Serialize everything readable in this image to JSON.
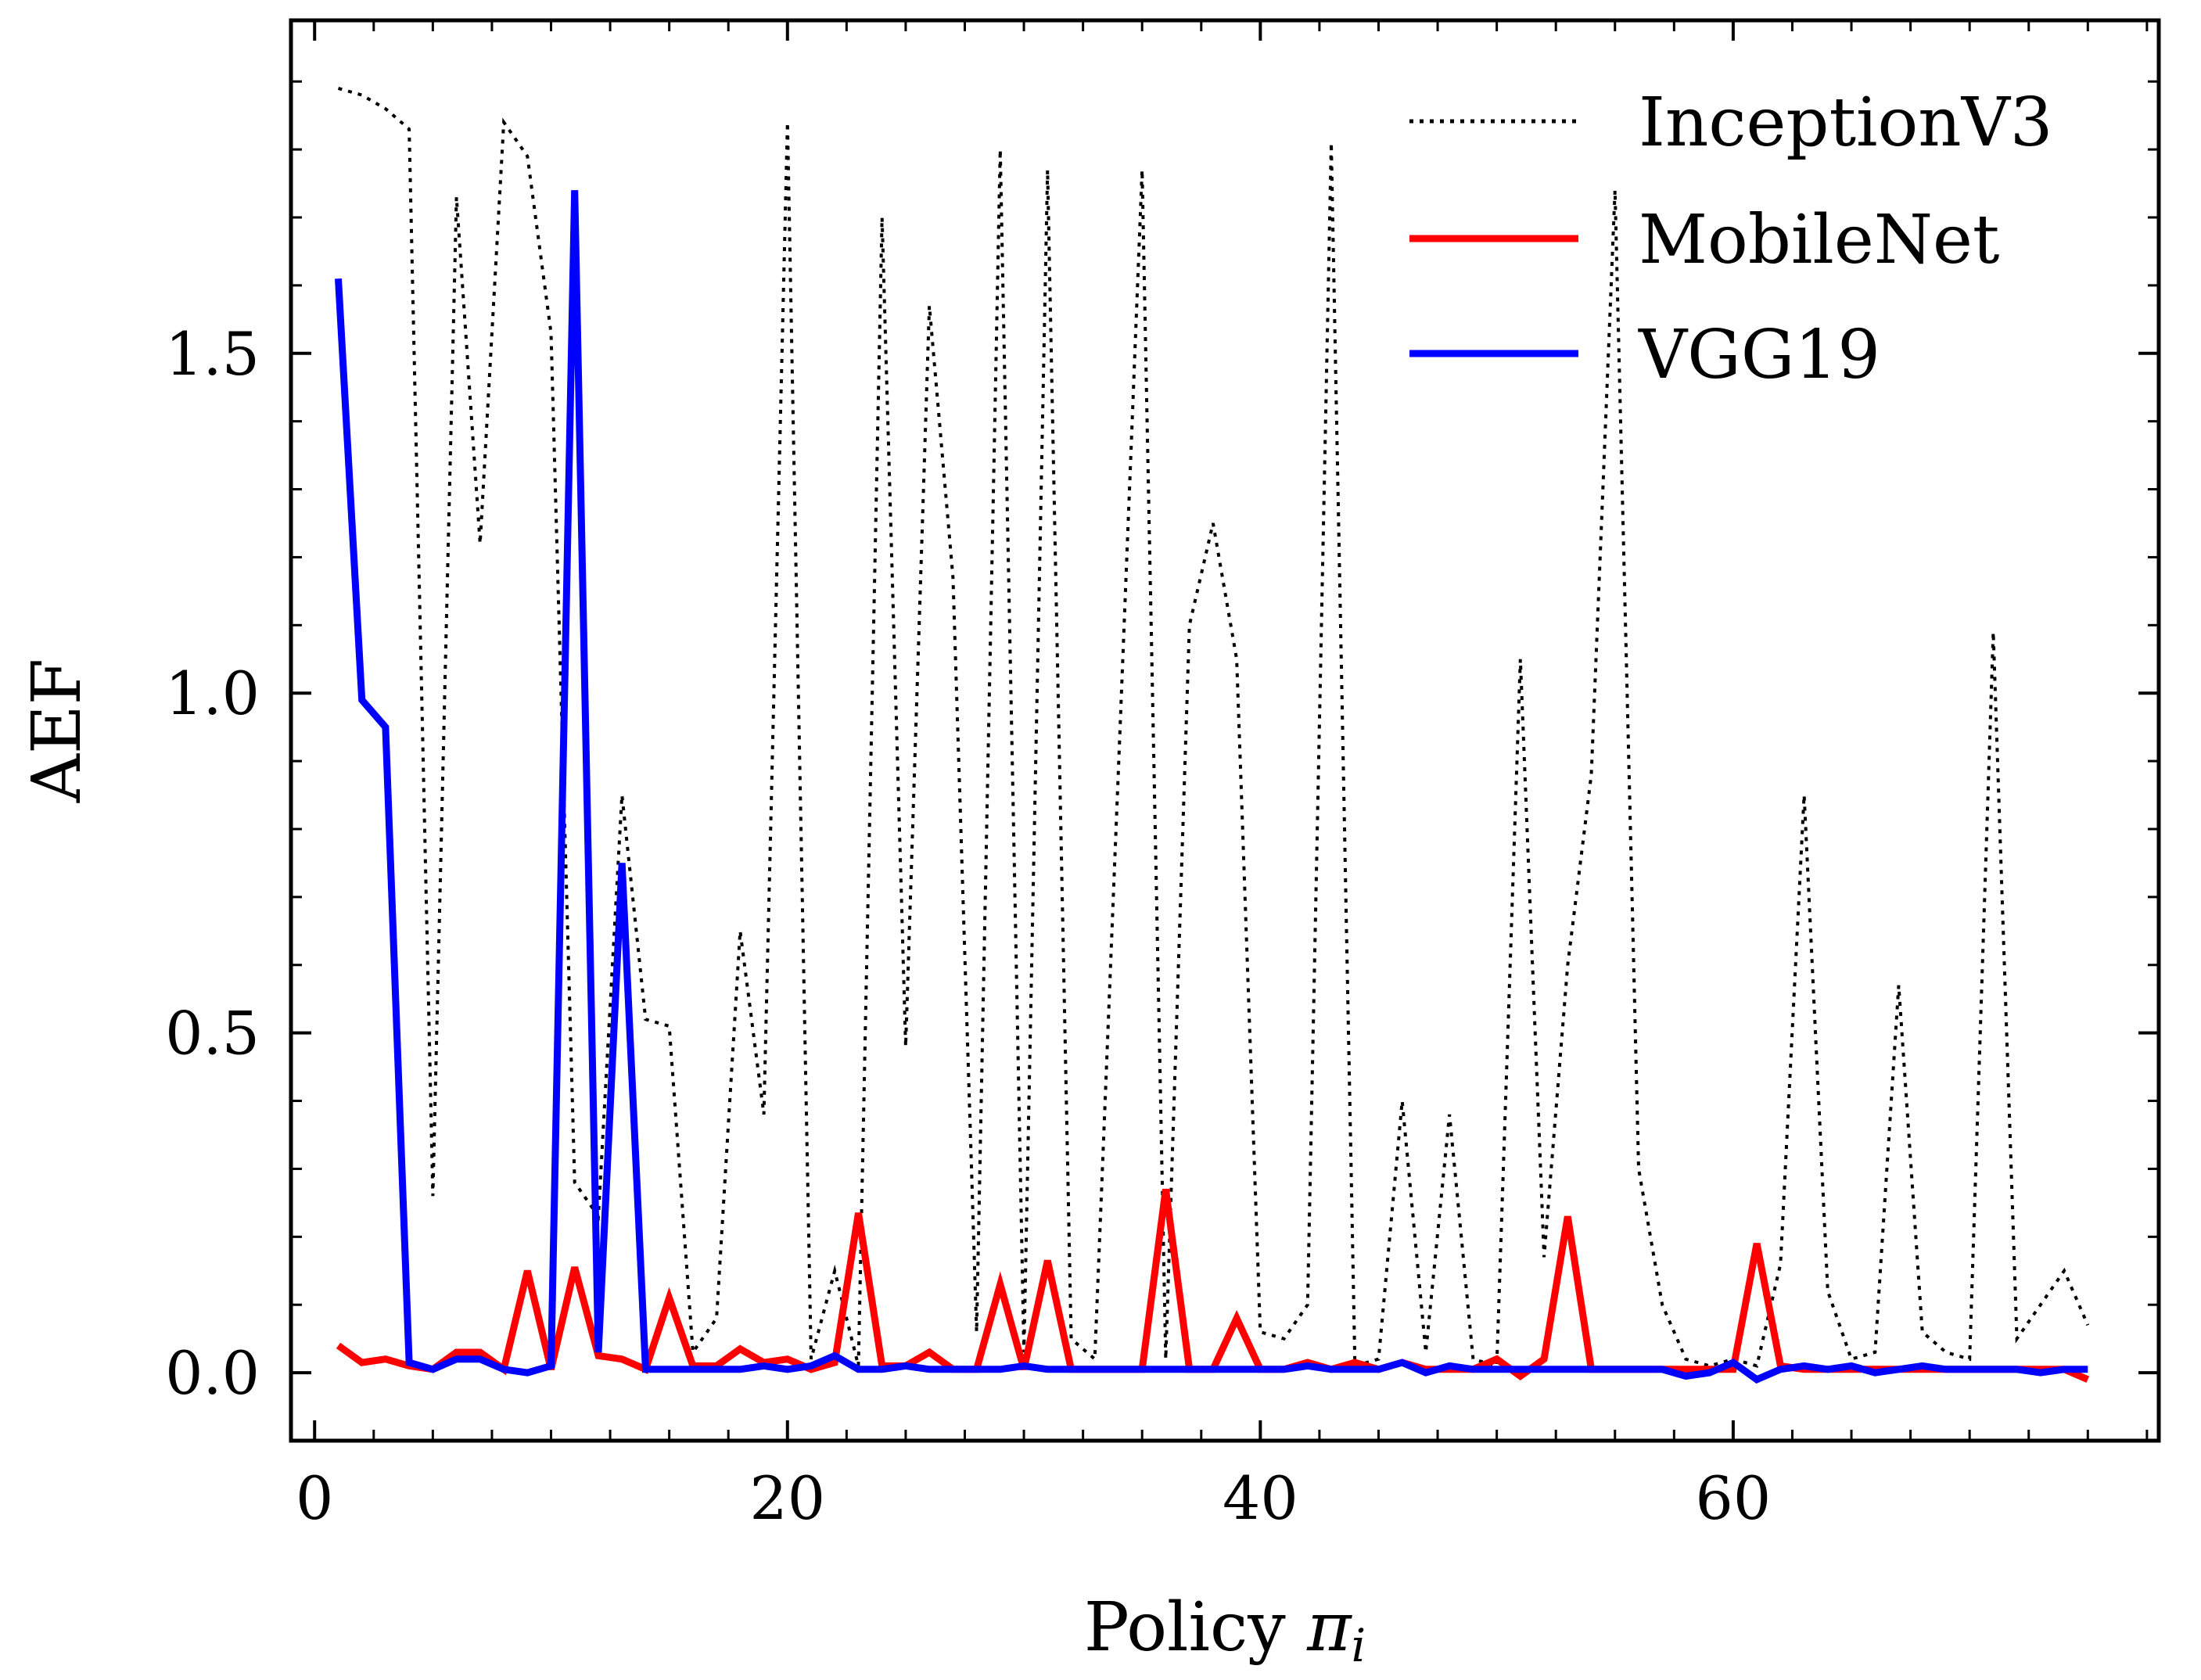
{
  "chart_data": {
    "type": "line",
    "title": "",
    "xlabel": "Policy ",
    "xlabel_symbol": "π",
    "xlabel_subscript": "i",
    "ylabel": "AEF",
    "xlim": [
      -1,
      78
    ],
    "ylim": [
      -0.1,
      1.99
    ],
    "xticks": [
      0,
      20,
      40,
      60
    ],
    "xtick_labels": [
      "0",
      "20",
      "40",
      "60"
    ],
    "yticks": [
      0.0,
      0.5,
      1.0,
      1.5
    ],
    "ytick_labels": [
      "0.0",
      "0.5",
      "1.0",
      "1.5"
    ],
    "grid": false,
    "legend_position": "top-right",
    "x": [
      1,
      2,
      3,
      4,
      5,
      6,
      7,
      8,
      9,
      10,
      11,
      12,
      13,
      14,
      15,
      16,
      17,
      18,
      19,
      20,
      21,
      22,
      23,
      24,
      25,
      26,
      27,
      28,
      29,
      30,
      31,
      32,
      33,
      34,
      35,
      36,
      37,
      38,
      39,
      40,
      41,
      42,
      43,
      44,
      45,
      46,
      47,
      48,
      49,
      50,
      51,
      52,
      53,
      54,
      55,
      56,
      57,
      58,
      59,
      60,
      61,
      62,
      63,
      64,
      65,
      66,
      67,
      68,
      69,
      70,
      71,
      72,
      73,
      74,
      75
    ],
    "series": [
      {
        "name": "InceptionV3",
        "color": "#000000",
        "style": "dotted",
        "values": [
          1.89,
          1.88,
          1.86,
          1.83,
          0.26,
          1.73,
          1.22,
          1.84,
          1.79,
          1.53,
          0.28,
          0.23,
          0.85,
          0.52,
          0.51,
          0.03,
          0.08,
          0.65,
          0.38,
          1.84,
          0.02,
          0.15,
          0.01,
          1.7,
          0.48,
          1.57,
          1.17,
          0.06,
          1.8,
          0.03,
          1.77,
          0.05,
          0.02,
          0.89,
          1.77,
          0.02,
          1.1,
          1.25,
          1.05,
          0.06,
          0.05,
          0.1,
          1.81,
          0.01,
          0.02,
          0.4,
          0.03,
          0.38,
          0.02,
          0.01,
          1.05,
          0.17,
          0.6,
          0.88,
          1.74,
          0.3,
          0.1,
          0.02,
          0.01,
          0.02,
          0.01,
          0.16,
          0.85,
          0.12,
          0.02,
          0.03,
          0.57,
          0.06,
          0.03,
          0.02,
          1.09,
          0.05,
          0.1,
          0.15,
          0.07
        ]
      },
      {
        "name": "MobileNet",
        "color": "#ff0000",
        "style": "solid",
        "values": [
          0.04,
          0.015,
          0.02,
          0.01,
          0.005,
          0.03,
          0.03,
          0.005,
          0.15,
          0.005,
          0.155,
          0.025,
          0.02,
          0.005,
          0.11,
          0.01,
          0.01,
          0.035,
          0.015,
          0.02,
          0.005,
          0.015,
          0.235,
          0.01,
          0.01,
          0.03,
          0.005,
          0.005,
          0.13,
          0.005,
          0.165,
          0.005,
          0.005,
          0.005,
          0.005,
          0.27,
          0.005,
          0.005,
          0.08,
          0.005,
          0.005,
          0.015,
          0.005,
          0.015,
          0.005,
          0.015,
          0.005,
          0.005,
          0.005,
          0.02,
          -0.005,
          0.02,
          0.23,
          0.005,
          0.005,
          0.005,
          0.005,
          0.005,
          0.005,
          0.005,
          0.19,
          0.01,
          0.005,
          0.005,
          0.005,
          0.005,
          0.005,
          0.005,
          0.005,
          0.005,
          0.005,
          0.005,
          0.005,
          0.005,
          -0.01
        ]
      },
      {
        "name": "VGG19",
        "color": "#0000ff",
        "style": "solid",
        "values": [
          1.61,
          0.99,
          0.95,
          0.015,
          0.005,
          0.02,
          0.02,
          0.005,
          0.0,
          0.01,
          1.74,
          0.03,
          0.75,
          0.005,
          0.005,
          0.005,
          0.005,
          0.005,
          0.01,
          0.005,
          0.01,
          0.025,
          0.005,
          0.005,
          0.01,
          0.005,
          0.005,
          0.005,
          0.005,
          0.01,
          0.005,
          0.005,
          0.005,
          0.005,
          0.005,
          0.005,
          0.005,
          0.005,
          0.005,
          0.005,
          0.005,
          0.01,
          0.005,
          0.005,
          0.005,
          0.015,
          0.0,
          0.01,
          0.005,
          0.005,
          0.005,
          0.005,
          0.005,
          0.005,
          0.005,
          0.005,
          0.005,
          -0.005,
          0.0,
          0.015,
          -0.01,
          0.005,
          0.01,
          0.005,
          0.01,
          0.0,
          0.005,
          0.01,
          0.005,
          0.005,
          0.005,
          0.005,
          0.0,
          0.005,
          0.005
        ]
      }
    ]
  }
}
